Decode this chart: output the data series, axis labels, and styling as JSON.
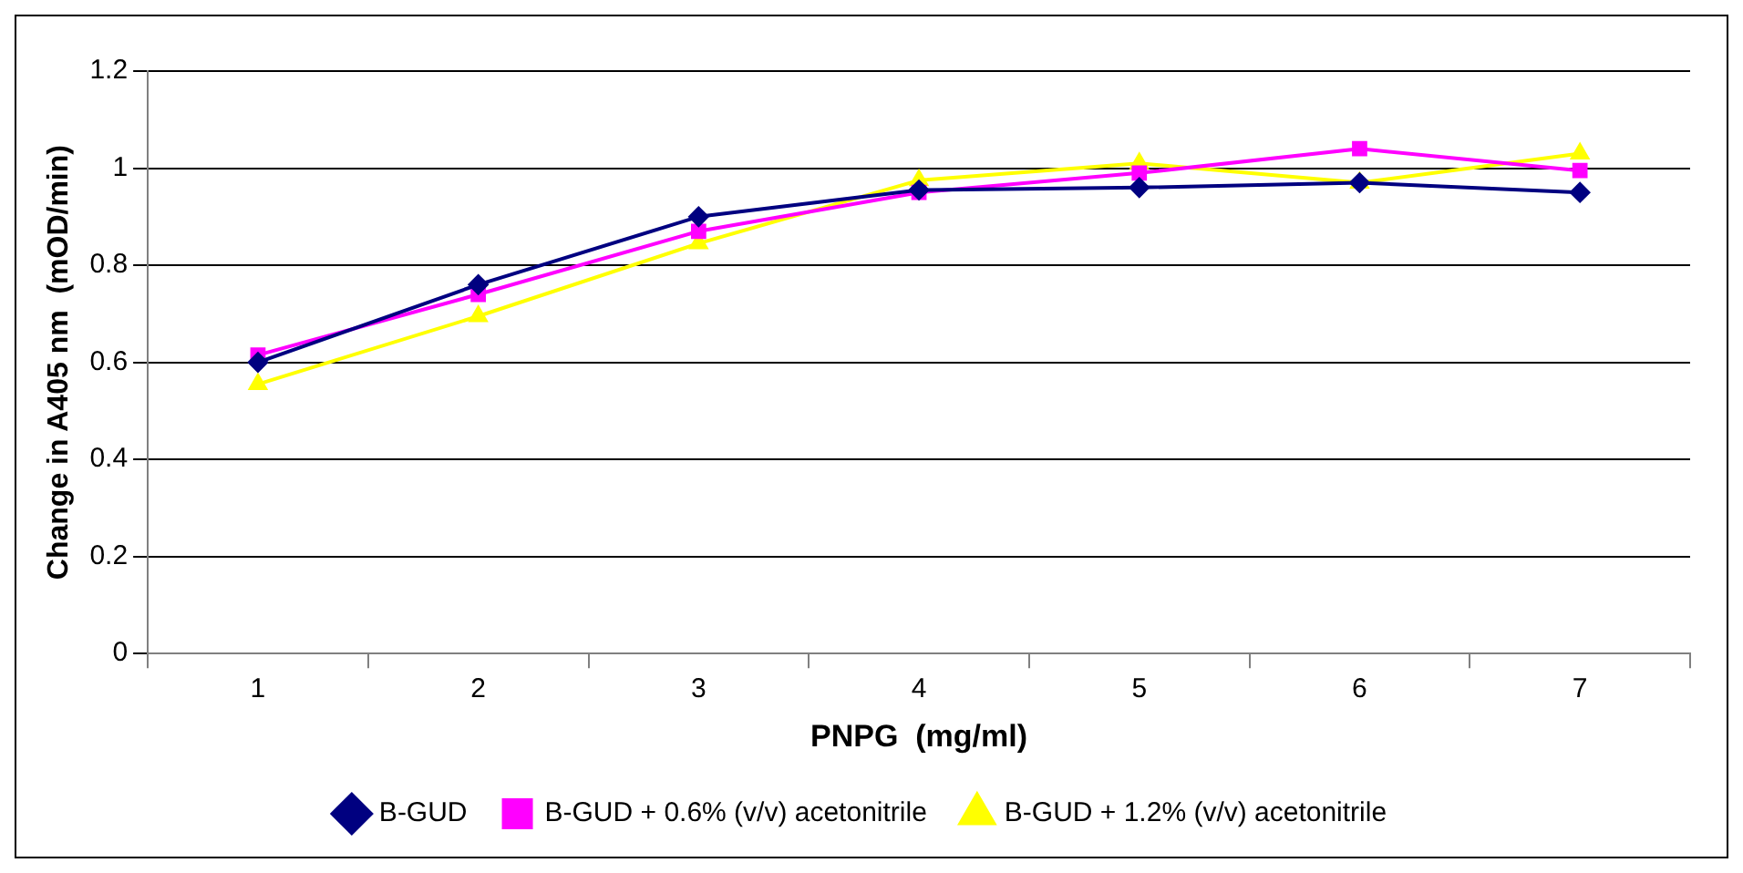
{
  "chart_data": {
    "type": "line",
    "xlabel": "PNPG  (mg/ml)",
    "ylabel": "Change in A405 nm  (mOD/min)",
    "categories": [
      "1",
      "2",
      "3",
      "4",
      "5",
      "6",
      "7"
    ],
    "series": [
      {
        "name": "B-GUD",
        "color": "#000080",
        "marker": "diamond",
        "values": [
          0.6,
          0.76,
          0.9,
          0.955,
          0.96,
          0.97,
          0.95
        ]
      },
      {
        "name": "B-GUD + 0.6% (v/v) acetonitrile",
        "color": "#ff00ff",
        "marker": "square",
        "values": [
          0.615,
          0.74,
          0.87,
          0.95,
          0.99,
          1.04,
          0.995
        ]
      },
      {
        "name": "B-GUD + 1.2% (v/v) acetonitrile",
        "color": "#ffff00",
        "marker": "triangle",
        "values": [
          0.555,
          0.695,
          0.845,
          0.975,
          1.01,
          0.97,
          1.03
        ]
      }
    ],
    "ylim": [
      0,
      1.2
    ],
    "yticks": [
      0,
      0.2,
      0.4,
      0.6,
      0.8,
      1,
      1.2
    ],
    "grid": "y",
    "legend": "bottom",
    "line_style": "solid"
  }
}
